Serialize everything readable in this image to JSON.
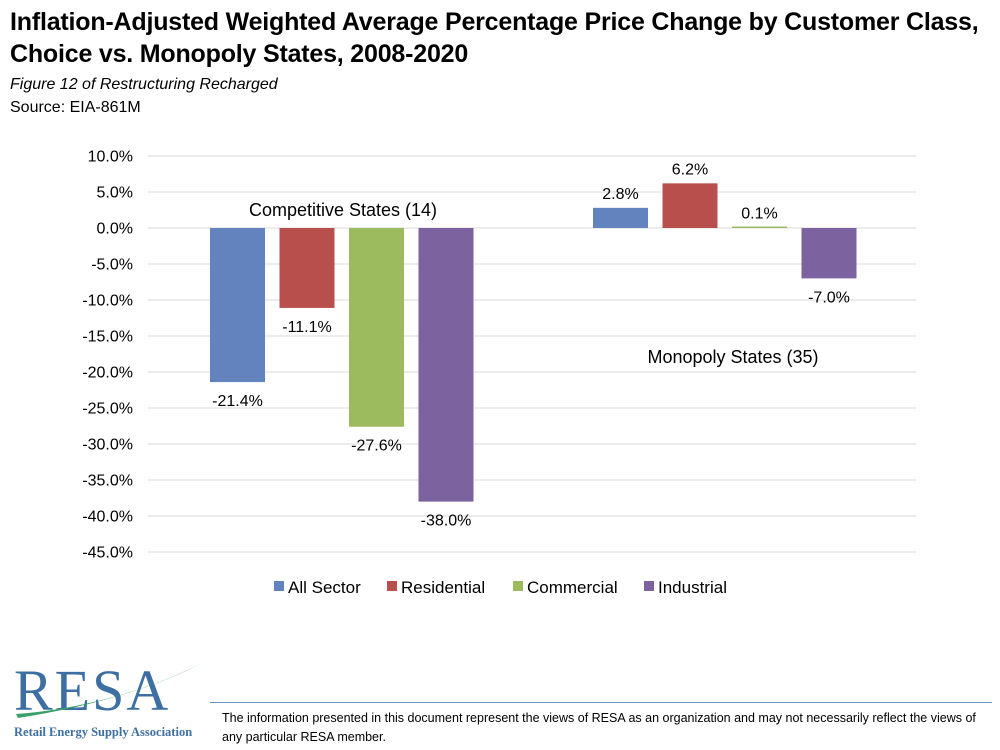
{
  "header": {
    "title": "Inflation-Adjusted Weighted Average Percentage Price Change by Customer Class, Choice vs. Monopoly States, 2008-2020",
    "subtitle": "Figure 12 of Restructuring Recharged",
    "source": "Source: EIA-861M"
  },
  "chart_data": {
    "type": "bar",
    "categories": [
      "Competitive States (14)",
      "Monopoly States (35)"
    ],
    "series": [
      {
        "name": "All Sector",
        "values": [
          -21.4,
          2.8
        ],
        "color": "#6283be"
      },
      {
        "name": "Residential",
        "values": [
          -11.1,
          6.2
        ],
        "color": "#b84f4d"
      },
      {
        "name": "Commercial",
        "values": [
          -27.6,
          0.1
        ],
        "color": "#9cba5e"
      },
      {
        "name": "Industrial",
        "values": [
          -38.0,
          -7.0
        ],
        "color": "#7c63a0"
      }
    ],
    "data_labels": [
      [
        "-21.4%",
        "-11.1%",
        "-27.6%",
        "-38.0%"
      ],
      [
        "2.8%",
        "6.2%",
        "0.1%",
        "-7.0%"
      ]
    ],
    "ylim": [
      -45,
      10
    ],
    "y_ticks": [
      "10.0%",
      "5.0%",
      "0.0%",
      "-5.0%",
      "-10.0%",
      "-15.0%",
      "-20.0%",
      "-25.0%",
      "-30.0%",
      "-35.0%",
      "-40.0%",
      "-45.0%"
    ],
    "grid": true,
    "legend_position": "bottom",
    "xlabel": "",
    "ylabel": ""
  },
  "logo": {
    "text": "RESA",
    "tagline": "Retail Energy Supply Association",
    "color": "#3d6fa3",
    "swoosh_color": "#3aa06a"
  },
  "footer": {
    "disclaimer": "The information presented in this document represent the views of RESA as an organization and may not necessarily reflect the views of any particular RESA member."
  }
}
